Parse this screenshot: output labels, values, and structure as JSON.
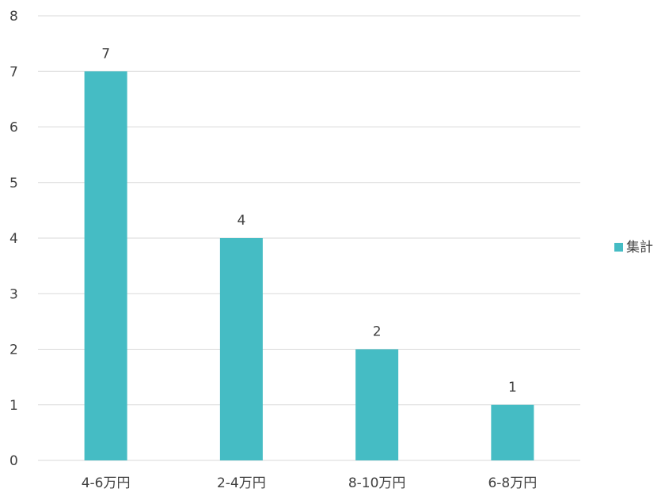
{
  "chart_data": {
    "type": "bar",
    "categories": [
      "4-6万円",
      "2-4万円",
      "8-10万円",
      "6-8万円"
    ],
    "series": [
      {
        "name": "集計",
        "values": [
          7,
          4,
          2,
          1
        ],
        "color": "#45BCC4"
      }
    ],
    "ylim": [
      0,
      8
    ],
    "yticks": [
      0,
      1,
      2,
      3,
      4,
      5,
      6,
      7,
      8
    ],
    "grid": true,
    "legend": "right",
    "data_labels": true,
    "gridline_color": "#D9D9D9",
    "text_color": "#404040"
  }
}
